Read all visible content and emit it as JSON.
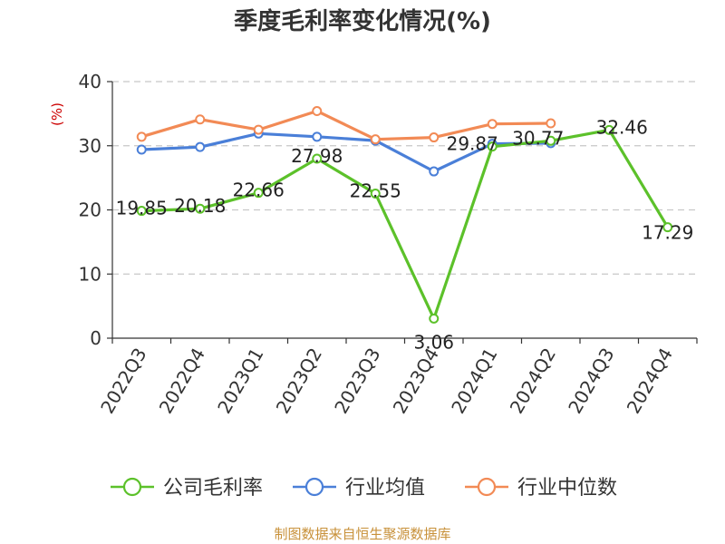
{
  "chart_data": {
    "type": "line",
    "title": "季度毛利率变化情况(%)",
    "ylabel": "(%)",
    "ylim": [
      0,
      40
    ],
    "yticks": [
      0,
      10,
      20,
      30,
      40
    ],
    "grid": true,
    "legend_position": "bottom",
    "categories": [
      "2022Q3",
      "2022Q4",
      "2023Q1",
      "2023Q2",
      "2023Q3",
      "2023Q4",
      "2024Q1",
      "2024Q2",
      "2024Q3",
      "2024Q4"
    ],
    "series": [
      {
        "name": "公司毛利率",
        "color": "#5cc12a",
        "values": [
          19.85,
          20.18,
          22.66,
          27.98,
          22.55,
          3.06,
          29.87,
          30.77,
          32.46,
          17.29
        ],
        "labels": [
          "19.85",
          "20.18",
          "22.66",
          "27.98",
          "22.55",
          "3.06",
          "29.87",
          "30.77",
          "32.46",
          "17.29"
        ]
      },
      {
        "name": "行业均值",
        "color": "#4a7fd8",
        "values": [
          29.4,
          29.8,
          31.9,
          31.4,
          30.8,
          26.0,
          30.3,
          30.4,
          null,
          null
        ]
      },
      {
        "name": "行业中位数",
        "color": "#f28a55",
        "values": [
          31.4,
          34.1,
          32.5,
          35.4,
          31.0,
          31.3,
          33.4,
          33.5,
          null,
          null
        ]
      }
    ],
    "source_text": "制图数据来自恒生聚源数据库"
  }
}
